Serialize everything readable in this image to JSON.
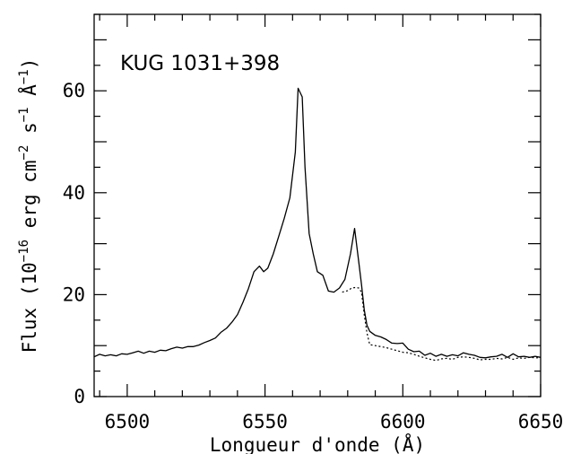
{
  "chart_data": {
    "type": "line",
    "xlabel": "Longueur d'onde (Å)",
    "ylabel_parts": {
      "base": "Flux (10",
      "exp1": "−16",
      "mid1": " erg cm",
      "exp2": "−2",
      "mid2": " s",
      "exp3": "−1",
      "mid3": " Å",
      "exp4": "−1",
      "end": ")"
    },
    "annotation": "KUG 1031+398",
    "xlim": [
      6488,
      6650
    ],
    "ylim": [
      0,
      75
    ],
    "x_ticks": [
      6500,
      6550,
      6600,
      6650
    ],
    "y_ticks": [
      0,
      20,
      40,
      60
    ],
    "x_minor_step": 10,
    "y_minor_step": 5,
    "grid": false,
    "series": [
      {
        "style": "solid",
        "x": [
          6488,
          6490,
          6492,
          6494,
          6496,
          6498,
          6500,
          6502,
          6504,
          6506,
          6508,
          6510,
          6512,
          6514,
          6516,
          6518,
          6520,
          6522,
          6524,
          6526,
          6528,
          6530,
          6532,
          6534,
          6536,
          6538,
          6540,
          6542,
          6544,
          6546,
          6548,
          6549.5,
          6551,
          6553,
          6555,
          6557,
          6559,
          6561,
          6562,
          6563.5,
          6564.5,
          6566,
          6567.5,
          6569,
          6571,
          6573,
          6575,
          6577,
          6579,
          6581,
          6582.5,
          6584,
          6585,
          6586,
          6587,
          6588,
          6590,
          6592,
          6594,
          6596,
          6598,
          6600,
          6602,
          6604,
          6606,
          6608,
          6610,
          6612,
          6614,
          6616,
          6618,
          6620,
          6622,
          6624,
          6626,
          6628,
          6630,
          6632,
          6634,
          6636,
          6638,
          6640,
          6642,
          6644,
          6646,
          6648,
          6650
        ],
        "y": [
          7.8,
          8.3,
          8.0,
          8.2,
          8.0,
          8.4,
          8.3,
          8.6,
          8.9,
          8.5,
          8.9,
          8.7,
          9.1,
          9.0,
          9.4,
          9.7,
          9.5,
          9.8,
          9.8,
          10.1,
          10.6,
          11.0,
          11.5,
          12.6,
          13.4,
          14.6,
          16.1,
          18.5,
          21.2,
          24.5,
          25.6,
          24.5,
          25.2,
          28.0,
          31.5,
          35.0,
          39.0,
          48.0,
          60.5,
          58.8,
          45.0,
          32.0,
          28.0,
          24.5,
          23.8,
          20.7,
          20.5,
          21.3,
          23.0,
          28.0,
          33.0,
          26.5,
          22.0,
          17.0,
          14.0,
          12.8,
          12.0,
          11.7,
          11.2,
          10.5,
          10.4,
          10.5,
          9.3,
          8.8,
          8.9,
          8.1,
          8.5,
          7.9,
          8.3,
          7.9,
          8.2,
          8.0,
          8.6,
          8.3,
          8.1,
          7.7,
          7.6,
          7.8,
          7.9,
          8.3,
          7.7,
          8.4,
          7.8,
          7.9,
          7.7,
          7.9,
          7.7
        ]
      },
      {
        "style": "dotted",
        "x": [
          6578,
          6580,
          6581.5,
          6583,
          6584,
          6585,
          6586,
          6587,
          6588,
          6590,
          6592,
          6594,
          6596,
          6598,
          6600,
          6602,
          6604,
          6606,
          6608,
          6610,
          6612,
          6614,
          6616,
          6618,
          6620,
          6622,
          6624,
          6626,
          6628,
          6630,
          6632,
          6634,
          6636,
          6638,
          6640,
          6642,
          6644,
          6646,
          6648,
          6650
        ],
        "y": [
          20.5,
          20.8,
          21.3,
          21.4,
          21.3,
          20.5,
          16.0,
          12.5,
          10.2,
          10.0,
          9.8,
          9.6,
          9.3,
          9.0,
          8.7,
          8.6,
          8.3,
          7.9,
          7.6,
          7.3,
          7.1,
          7.4,
          7.5,
          7.3,
          7.7,
          7.8,
          7.7,
          7.5,
          7.2,
          7.3,
          7.3,
          7.5,
          7.4,
          7.7,
          7.3,
          7.6,
          7.5,
          7.7,
          7.6,
          7.6
        ]
      }
    ]
  }
}
